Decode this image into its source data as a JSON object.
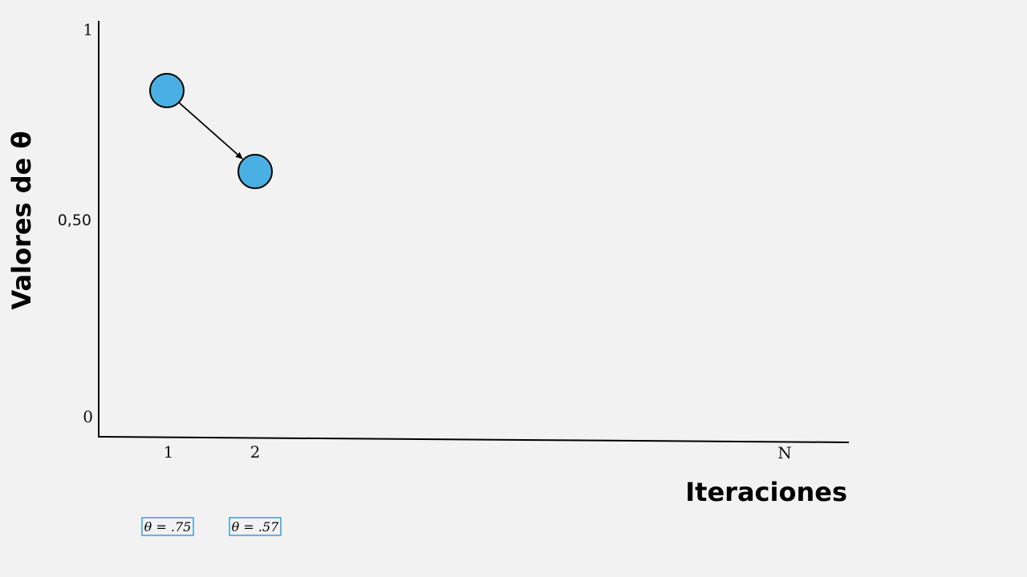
{
  "colors": {
    "background": "#f2f2f2",
    "point_fill": "#4ab0e3",
    "point_stroke": "#000000",
    "box_stroke": "#3a9fd6",
    "axis": "#000000"
  },
  "y_axis": {
    "title": "Valores de θ",
    "ticks": [
      {
        "value": 1,
        "label": "1"
      },
      {
        "value": 0.5,
        "label": "0,50"
      },
      {
        "value": 0,
        "label": "0"
      }
    ]
  },
  "x_axis": {
    "title": "Iteraciones",
    "ticks": [
      {
        "iteration": 1,
        "label": "1"
      },
      {
        "iteration": 2,
        "label": "2"
      },
      {
        "iteration": "N",
        "label": "N"
      }
    ]
  },
  "points": [
    {
      "iteration": 1,
      "theta": 0.75,
      "label": "θ = .75"
    },
    {
      "iteration": 2,
      "theta": 0.57,
      "label": "θ = .57"
    }
  ],
  "arrows": [
    {
      "from": 0,
      "to": 1
    }
  ]
}
